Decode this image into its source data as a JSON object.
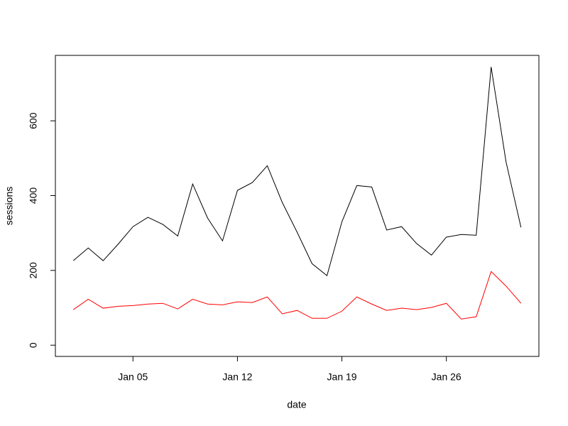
{
  "chart_data": {
    "type": "line",
    "x_label": "date",
    "y_label": "sessions",
    "x": [
      "Jan 01",
      "Jan 02",
      "Jan 03",
      "Jan 04",
      "Jan 05",
      "Jan 06",
      "Jan 07",
      "Jan 08",
      "Jan 09",
      "Jan 10",
      "Jan 11",
      "Jan 12",
      "Jan 13",
      "Jan 14",
      "Jan 15",
      "Jan 16",
      "Jan 17",
      "Jan 18",
      "Jan 19",
      "Jan 20",
      "Jan 21",
      "Jan 22",
      "Jan 23",
      "Jan 24",
      "Jan 25",
      "Jan 26",
      "Jan 27",
      "Jan 28",
      "Jan 29",
      "Jan 30",
      "Jan 31"
    ],
    "xticks": [
      "Jan 05",
      "Jan 12",
      "Jan 19",
      "Jan 26"
    ],
    "series": [
      {
        "color": "#000000",
        "values": [
          226,
          260,
          226,
          270,
          317,
          342,
          323,
          292,
          431,
          340,
          279,
          414,
          435,
          480,
          382,
          302,
          218,
          186,
          330,
          427,
          423,
          308,
          317,
          272,
          241,
          289,
          296,
          294,
          744,
          490,
          315
        ]
      },
      {
        "color": "#ff0000",
        "values": [
          95,
          123,
          99,
          104,
          106,
          110,
          112,
          97,
          123,
          110,
          108,
          116,
          114,
          129,
          84,
          93,
          72,
          72,
          91,
          129,
          110,
          93,
          99,
          95,
          101,
          112,
          70,
          76,
          197,
          158,
          112
        ]
      }
    ],
    "ylim": [
      -30,
      775
    ],
    "yticks": [
      0,
      200,
      400,
      600
    ]
  }
}
